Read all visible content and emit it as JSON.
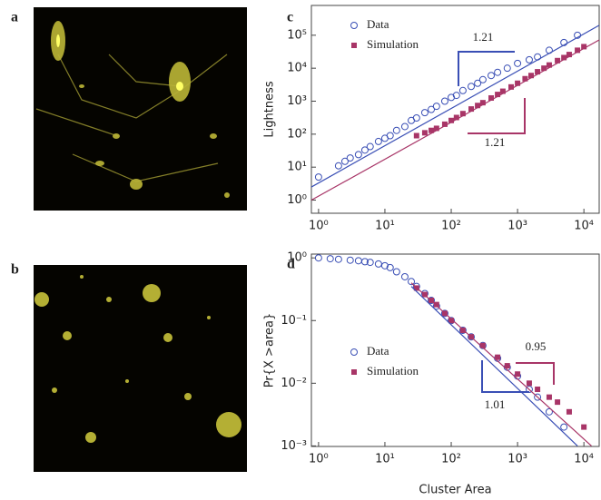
{
  "panel_labels": [
    "a",
    "b",
    "c",
    "d"
  ],
  "chart_data": [
    {
      "type": "scatter",
      "ylabel": "Lightness",
      "log_x": true,
      "log_y": true,
      "xlim": [
        0.78,
        17000
      ],
      "ylim": [
        0.4,
        800000
      ],
      "xticks": [
        {
          "value": 1,
          "label": "10⁰"
        },
        {
          "value": 10,
          "label": "10¹"
        },
        {
          "value": 100,
          "label": "10²"
        },
        {
          "value": 1000,
          "label": "10³"
        },
        {
          "value": 10000,
          "label": "10⁴"
        }
      ],
      "yticks": [
        {
          "value": 1,
          "label": "10⁰"
        },
        {
          "value": 10,
          "label": "10¹"
        },
        {
          "value": 100,
          "label": "10²"
        },
        {
          "value": 1000,
          "label": "10³"
        },
        {
          "value": 10000,
          "label": "10⁴"
        },
        {
          "value": 100000,
          "label": "10⁵"
        }
      ],
      "series": [
        {
          "name": "Data",
          "color": "#3a4fb5",
          "marker": "circle",
          "x": [
            1,
            2,
            2.5,
            3,
            4,
            5,
            6,
            8,
            10,
            12,
            15,
            20,
            25,
            30,
            40,
            50,
            60,
            80,
            100,
            120,
            150,
            200,
            250,
            300,
            400,
            500,
            700,
            1000,
            1500,
            2000,
            3000,
            5000,
            8000
          ],
          "values": [
            5,
            11,
            15,
            19,
            24,
            33,
            42,
            60,
            75,
            90,
            130,
            170,
            260,
            310,
            450,
            560,
            700,
            1000,
            1300,
            1500,
            2100,
            2800,
            3500,
            4500,
            6000,
            7500,
            10000,
            14000,
            18000,
            22000,
            35000,
            60000,
            100000
          ]
        },
        {
          "name": "Simulation",
          "color": "#a83567",
          "marker": "square",
          "x": [
            30,
            40,
            50,
            60,
            80,
            100,
            120,
            150,
            200,
            250,
            300,
            400,
            500,
            600,
            800,
            1000,
            1300,
            1600,
            2000,
            2500,
            3000,
            4000,
            5000,
            6000,
            8000,
            10000
          ],
          "values": [
            90,
            110,
            130,
            150,
            200,
            260,
            320,
            420,
            580,
            740,
            900,
            1250,
            1600,
            2000,
            2700,
            3500,
            4800,
            6000,
            7800,
            10000,
            12500,
            17000,
            21000,
            26000,
            35000,
            45000
          ]
        },
        {
          "color": "#3a4fb5",
          "marker": "line",
          "x": [
            0.78,
            17000
          ],
          "values": [
            2.5,
            200000
          ]
        },
        {
          "color": "#a83567",
          "marker": "line",
          "x": [
            0.78,
            17000
          ],
          "values": [
            1.0,
            72000
          ]
        }
      ],
      "annotations": [
        "1.21",
        "1.21"
      ]
    },
    {
      "type": "scatter",
      "xlabel": "Cluster Area",
      "ylabel": "Pr{X >area}",
      "log_x": true,
      "log_y": true,
      "xlim": [
        0.78,
        17000
      ],
      "ylim": [
        0.00098,
        1.15
      ],
      "xticks": [
        {
          "value": 1,
          "label": "10⁰"
        },
        {
          "value": 10,
          "label": "10¹"
        },
        {
          "value": 100,
          "label": "10²"
        },
        {
          "value": 1000,
          "label": "10³"
        },
        {
          "value": 10000,
          "label": "10⁴"
        }
      ],
      "yticks": [
        {
          "value": 0.001,
          "label": "10⁻³"
        },
        {
          "value": 0.01,
          "label": "10⁻²"
        },
        {
          "value": 0.1,
          "label": "10⁻¹"
        },
        {
          "value": 1,
          "label": "10⁰"
        }
      ],
      "series": [
        {
          "name": "Data",
          "color": "#3a4fb5",
          "marker": "circle",
          "x": [
            1,
            1.5,
            2,
            3,
            4,
            5,
            6,
            8,
            10,
            12,
            15,
            20,
            25,
            30,
            40,
            50,
            60,
            80,
            100,
            150,
            200,
            300,
            500,
            700,
            1000,
            1500,
            2000,
            3000,
            5000
          ],
          "values": [
            1,
            0.97,
            0.95,
            0.92,
            0.9,
            0.87,
            0.85,
            0.8,
            0.75,
            0.7,
            0.6,
            0.5,
            0.42,
            0.35,
            0.27,
            0.21,
            0.17,
            0.13,
            0.1,
            0.07,
            0.055,
            0.04,
            0.025,
            0.018,
            0.013,
            0.008,
            0.006,
            0.0035,
            0.002
          ]
        },
        {
          "name": "Simulation",
          "color": "#a83567",
          "marker": "square",
          "x": [
            30,
            40,
            50,
            60,
            80,
            100,
            150,
            200,
            300,
            500,
            700,
            1000,
            1500,
            2000,
            3000,
            4000,
            6000,
            10000
          ],
          "values": [
            0.33,
            0.26,
            0.21,
            0.18,
            0.13,
            0.1,
            0.07,
            0.055,
            0.04,
            0.026,
            0.019,
            0.014,
            0.01,
            0.008,
            0.006,
            0.005,
            0.0035,
            0.002
          ]
        },
        {
          "color": "#3a4fb5",
          "marker": "line",
          "x": [
            25,
            8000
          ],
          "values": [
            0.35,
            0.001
          ]
        },
        {
          "color": "#a83567",
          "marker": "line",
          "x": [
            25,
            13000
          ],
          "values": [
            0.4,
            0.001
          ]
        }
      ],
      "annotations": [
        "0.95",
        "1.01"
      ]
    }
  ]
}
